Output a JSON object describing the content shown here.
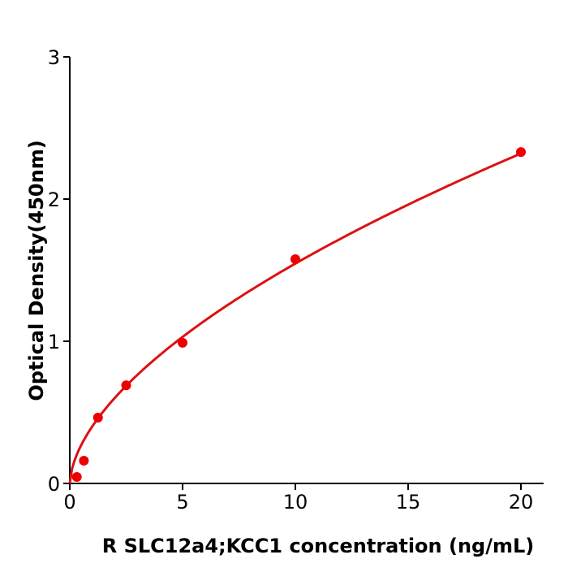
{
  "chart_data": {
    "type": "scatter",
    "title": "",
    "xlabel": "R  SLC12a4;KCC1 concentration (ng/mL)",
    "ylabel": "Optical Density(450nm)",
    "xlim": [
      0,
      21
    ],
    "ylim": [
      0,
      3
    ],
    "xticks": [
      0,
      5,
      10,
      15,
      20
    ],
    "yticks": [
      0,
      1,
      2,
      3
    ],
    "grid": false,
    "points": {
      "x": [
        0.3125,
        0.625,
        1.25,
        2.5,
        5,
        10,
        20
      ],
      "y": [
        0.046,
        0.16,
        0.463,
        0.69,
        0.989,
        1.577,
        2.331
      ]
    },
    "fit_curve": true,
    "colors": {
      "points": "#ee0000",
      "curve": "#dd1111",
      "axes": "#000000"
    }
  }
}
